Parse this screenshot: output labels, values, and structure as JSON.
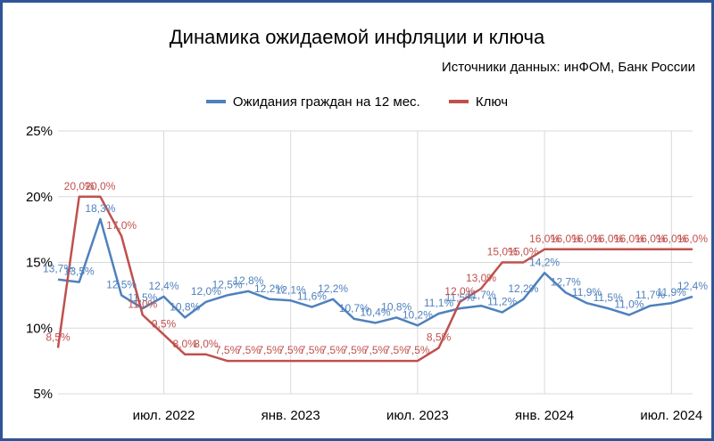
{
  "chart_data": {
    "type": "line",
    "title": "Динамика ожидаемой инфляции и ключа",
    "subtitle": "Источники данных: инФОМ, Банк России",
    "x_tick_labels": [
      "июл. 2022",
      "янв. 2023",
      "июл. 2023",
      "янв. 2024",
      "июл. 2024"
    ],
    "y_tick_labels": [
      "5%",
      "10%",
      "15%",
      "20%",
      "25%"
    ],
    "ylim": [
      5,
      25
    ],
    "grid": true,
    "legend_position": "top",
    "series": [
      {
        "name": "Ожидания граждан на 12 мес.",
        "color": "#4f81bd",
        "values": [
          13.7,
          13.5,
          18.3,
          12.5,
          11.5,
          12.4,
          10.8,
          12.0,
          12.5,
          12.8,
          12.2,
          12.1,
          11.6,
          12.2,
          10.7,
          10.4,
          10.8,
          10.2,
          11.1,
          11.5,
          11.7,
          11.2,
          12.2,
          14.2,
          12.7,
          11.9,
          11.5,
          11.0,
          11.7,
          11.9,
          12.4
        ],
        "labels": [
          "13,7%",
          "13,5%",
          "18,3%",
          "12,5%",
          "11,5%",
          "12,4%",
          "10,8%",
          "12,0%",
          "12,5%",
          "12,8%",
          "12,2%",
          "12,1%",
          "11,6%",
          "12,2%",
          "10,7%",
          "10,4%",
          "10,8%",
          "10,2%",
          "11,1%",
          "11,5%",
          "11,7%",
          "11,2%",
          "12,2%",
          "14,2%",
          "12,7%",
          "11,9%",
          "11,5%",
          "11,0%",
          "11,7%",
          "11,9%",
          "12,4%"
        ]
      },
      {
        "name": "Ключ",
        "color": "#c0504d",
        "values": [
          8.5,
          20.0,
          20.0,
          17.0,
          11.0,
          9.5,
          8.0,
          8.0,
          7.5,
          7.5,
          7.5,
          7.5,
          7.5,
          7.5,
          7.5,
          7.5,
          7.5,
          7.5,
          8.5,
          12.0,
          13.0,
          15.0,
          15.0,
          16.0,
          16.0,
          16.0,
          16.0,
          16.0,
          16.0,
          16.0,
          16.0
        ],
        "labels": [
          "8,5%",
          "20,0%",
          "20,0%",
          "17,0%",
          "11,0%",
          "9,5%",
          "8,0%",
          "8,0%",
          "7,5%",
          "7,5%",
          "7,5%",
          "7,5%",
          "7,5%",
          "7,5%",
          "7,5%",
          "7,5%",
          "7,5%",
          "7,5%",
          "8,5%",
          "12,0%",
          "13,0%",
          "15,0%",
          "15,0%",
          "16,0%",
          "16,0%",
          "16,0%",
          "16,0%",
          "16,0%",
          "16,0%",
          "16,0%",
          "16,0%"
        ]
      }
    ]
  }
}
